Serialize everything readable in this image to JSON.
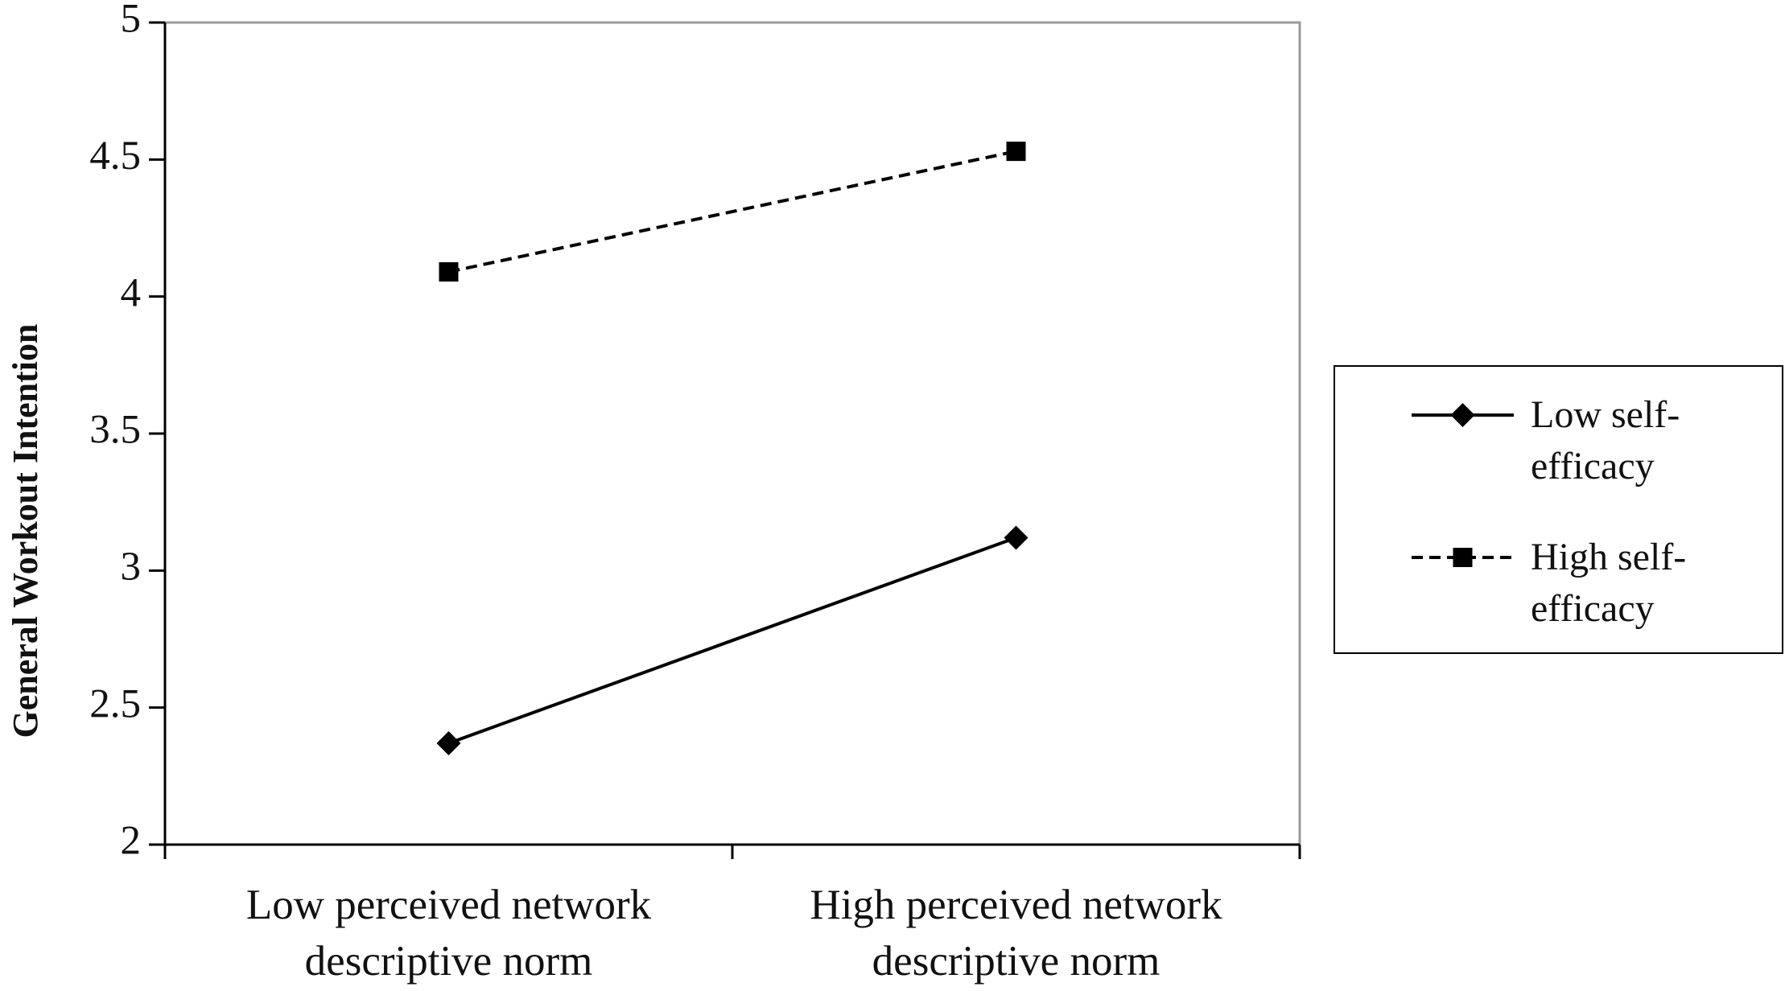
{
  "chart_data": {
    "type": "line",
    "ylabel": "General Workout Intention",
    "categories": [
      "Low perceived network descriptive norm",
      "High perceived network descriptive norm"
    ],
    "series": [
      {
        "name": "Low self-efficacy",
        "color": "#000000",
        "marker": "diamond",
        "dash": false,
        "values": [
          2.37,
          3.12
        ]
      },
      {
        "name": "High self-efficacy",
        "color": "#000000",
        "marker": "square",
        "dash": true,
        "values": [
          4.09,
          4.53
        ]
      }
    ],
    "ylim": [
      2,
      5
    ],
    "yticks": [
      2,
      2.5,
      3,
      3.5,
      4,
      4.5,
      5
    ],
    "legend": "right"
  }
}
